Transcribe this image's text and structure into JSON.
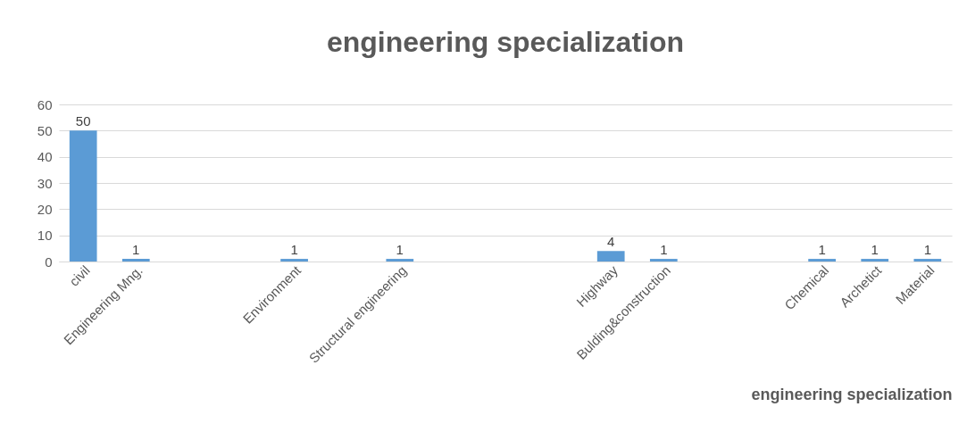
{
  "chart_data": {
    "type": "bar",
    "title": "engineering specialization",
    "xlabel": "engineering specialization",
    "categories": [
      "civil",
      "Engineering Mng.",
      null,
      null,
      "Environment",
      null,
      "Structural engineering",
      null,
      null,
      null,
      "Highway",
      "Bulding&construction",
      null,
      null,
      "Chemical",
      "Archetict",
      "Material"
    ],
    "values": [
      50,
      1,
      null,
      null,
      1,
      null,
      1,
      null,
      null,
      null,
      4,
      1,
      null,
      null,
      1,
      1,
      1
    ],
    "color": "#5b9bd5",
    "ylim": [
      0,
      60
    ],
    "yticks": [
      0,
      10,
      20,
      30,
      40,
      50,
      60
    ],
    "grid": "y",
    "data_labels": true
  }
}
